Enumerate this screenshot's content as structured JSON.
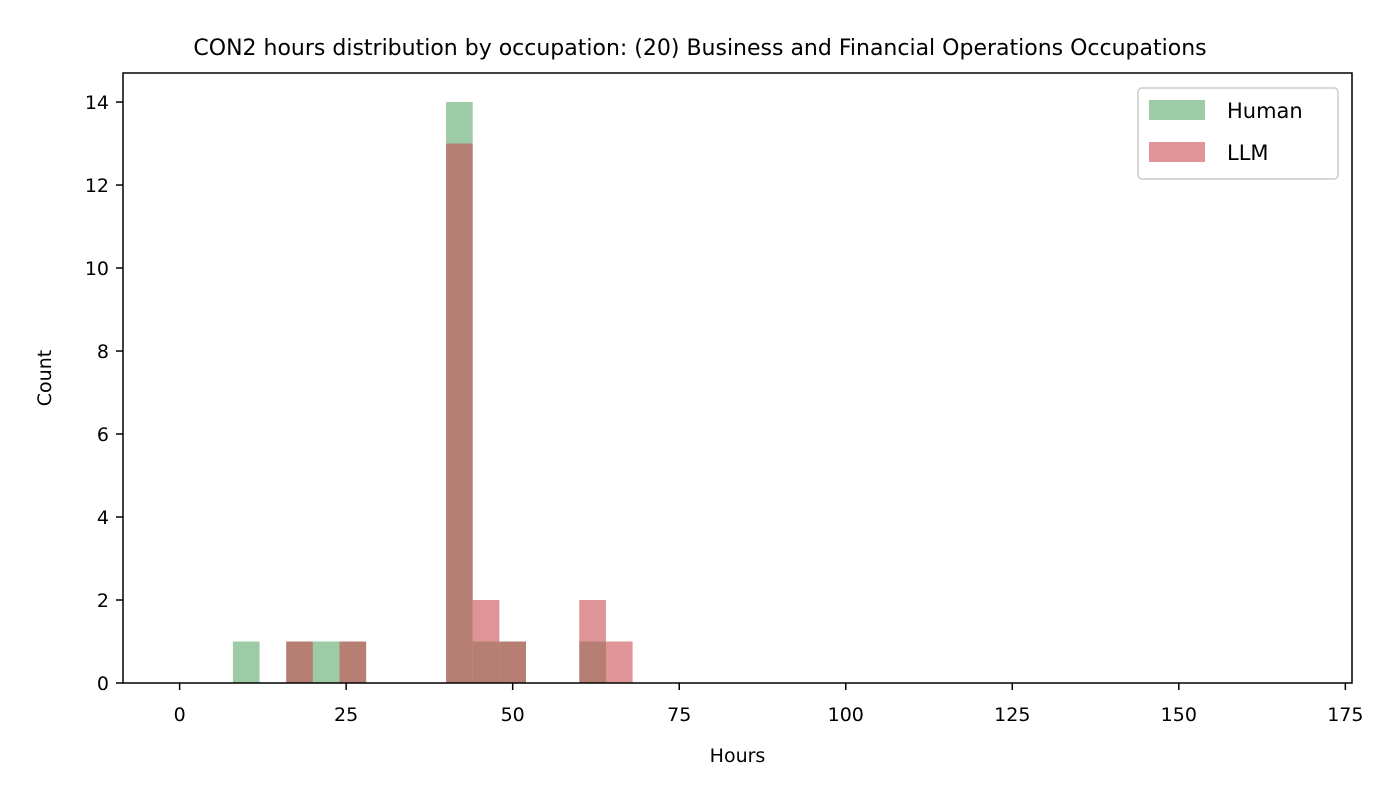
{
  "chart_data": {
    "type": "bar",
    "title": "CON2 hours distribution by occupation: (20) Business and Financial Operations Occupations",
    "xlabel": "Hours",
    "ylabel": "Count",
    "xlim": [
      -8.5,
      176
    ],
    "ylim": [
      0,
      14.7
    ],
    "xticks": [
      0,
      25,
      50,
      75,
      100,
      125,
      150,
      175
    ],
    "yticks": [
      0,
      2,
      4,
      6,
      8,
      10,
      12,
      14
    ],
    "bin_width": 4,
    "legend_position": "top-right",
    "series": [
      {
        "name": "Human",
        "color": "#5aa96b",
        "opacity": 0.6,
        "bins": [
          {
            "x0": 8,
            "x1": 12,
            "count": 1
          },
          {
            "x0": 16,
            "x1": 20,
            "count": 1
          },
          {
            "x0": 20,
            "x1": 24,
            "count": 1
          },
          {
            "x0": 24,
            "x1": 28,
            "count": 1
          },
          {
            "x0": 40,
            "x1": 44,
            "count": 14
          },
          {
            "x0": 44,
            "x1": 48,
            "count": 1
          },
          {
            "x0": 48,
            "x1": 52,
            "count": 1
          },
          {
            "x0": 60,
            "x1": 64,
            "count": 1
          }
        ]
      },
      {
        "name": "LLM",
        "color": "#c94c51",
        "opacity": 0.6,
        "bins": [
          {
            "x0": 16,
            "x1": 20,
            "count": 1
          },
          {
            "x0": 24,
            "x1": 28,
            "count": 1
          },
          {
            "x0": 40,
            "x1": 44,
            "count": 13
          },
          {
            "x0": 44,
            "x1": 48,
            "count": 2
          },
          {
            "x0": 48,
            "x1": 52,
            "count": 1
          },
          {
            "x0": 60,
            "x1": 64,
            "count": 2
          },
          {
            "x0": 64,
            "x1": 68,
            "count": 1
          }
        ]
      }
    ]
  }
}
